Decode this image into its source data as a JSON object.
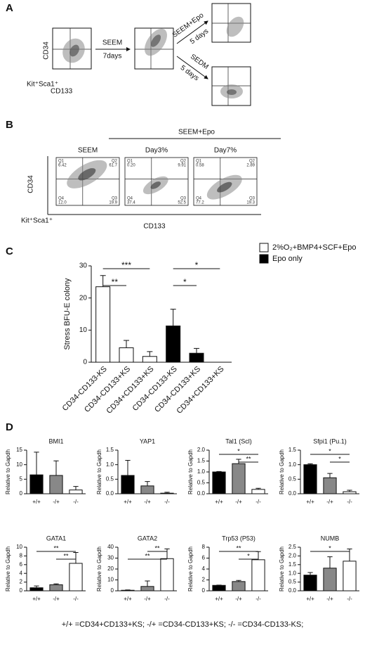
{
  "panels": {
    "A": {
      "label": "A",
      "y_label": "CD34",
      "x_label1": "Kit⁺Sca1⁺",
      "x_label2": "CD133",
      "step1": "SEEM",
      "step1_time": "7days",
      "step2a": "SEEM+Epo",
      "step2a_time": "5 days",
      "step2b": "SEDM",
      "step2b_time": "5 days"
    },
    "B": {
      "label": "B",
      "y_label": "CD34",
      "x_label1": "Kit⁺Sca1⁺",
      "x_label2": "CD133",
      "group": "SEEM+Epo",
      "plots": [
        {
          "title": "SEEM",
          "quadrants": [
            {
              "name": "Q1",
              "value": "6.42"
            },
            {
              "name": "Q2",
              "value": "61.7"
            },
            {
              "name": "Q4",
              "value": "12.0"
            },
            {
              "name": "Q3",
              "value": "19.9"
            }
          ]
        },
        {
          "title": "Day3%",
          "quadrants": [
            {
              "name": "Q1",
              "value": "0.20"
            },
            {
              "name": "Q2",
              "value": "9.91"
            },
            {
              "name": "Q4",
              "value": "37.4"
            },
            {
              "name": "Q3",
              "value": "52.5"
            }
          ]
        },
        {
          "title": "Day7%",
          "quadrants": [
            {
              "name": "Q1",
              "value": "0.58"
            },
            {
              "name": "Q2",
              "value": "2.89"
            },
            {
              "name": "Q4",
              "value": "77.2"
            },
            {
              "name": "Q3",
              "value": "19.3"
            }
          ]
        }
      ]
    },
    "C": {
      "label": "C"
    },
    "D": {
      "label": "D"
    }
  },
  "chart_data": [
    {
      "type": "bar",
      "ylabel": "Stress BFU-E colony",
      "categories": [
        "CD34-CD133-KS",
        "CD34-CD133+KS",
        "CD34+CD133+KS",
        "CD34-CD133-KS",
        "CD34-CD133+KS",
        "CD34+CD133+KS"
      ],
      "series": [
        {
          "name": "2%O₂+BMP4+SCF+Epo",
          "color": "#ffffff",
          "values": [
            23.5,
            4.5,
            1.8,
            null,
            null,
            null
          ],
          "errors": [
            3.5,
            2.3,
            1.5,
            null,
            null,
            null
          ]
        },
        {
          "name": "Epo only",
          "color": "#000000",
          "values": [
            null,
            null,
            null,
            11.3,
            2.8,
            0
          ],
          "errors": [
            null,
            null,
            null,
            5.2,
            1.5,
            0
          ]
        }
      ],
      "ylim": [
        0,
        30
      ],
      "yticks": [
        0,
        10,
        20,
        30
      ],
      "annotations": [
        {
          "text": "***",
          "from": 0,
          "to": 2
        },
        {
          "text": "**",
          "from": 0,
          "to": 1
        },
        {
          "text": "*",
          "from": 3,
          "to": 5
        },
        {
          "text": "*",
          "from": 3,
          "to": 4
        }
      ]
    },
    {
      "type": "bar",
      "title": "BMI1",
      "ylabel": "Relative to Gapdh",
      "categories": [
        "+/+",
        "-/+",
        "-/-"
      ],
      "values": [
        6.5,
        6.3,
        1.3
      ],
      "errors": [
        7.8,
        5,
        1.2
      ],
      "colors": [
        "#000000",
        "#888888",
        "#ffffff"
      ],
      "ylim": [
        0,
        15
      ],
      "yticks": [
        0,
        5,
        10,
        15
      ],
      "annotations": []
    },
    {
      "type": "bar",
      "title": "YAP1",
      "ylabel": "Relative to Gapdh",
      "categories": [
        "+/+",
        "-/+",
        "-/-"
      ],
      "values": [
        0.63,
        0.27,
        0.02
      ],
      "errors": [
        0.52,
        0.15,
        0.03
      ],
      "colors": [
        "#000000",
        "#888888",
        "#ffffff"
      ],
      "ylim": [
        0,
        1.5
      ],
      "yticks": [
        {
          "value": 0,
          "label": "0.0"
        },
        0.5,
        {
          "value": 1,
          "label": "1.0"
        },
        1.5
      ],
      "annotations": []
    },
    {
      "type": "bar",
      "title": "Tal1 (Scl)",
      "ylabel": "Relative to Gapdh",
      "categories": [
        "+/+",
        "-/+",
        "-/-"
      ],
      "values": [
        1.0,
        1.38,
        0.2
      ],
      "errors": [
        0.02,
        0.2,
        0.05
      ],
      "colors": [
        "#000000",
        "#888888",
        "#ffffff"
      ],
      "ylim": [
        0,
        2
      ],
      "yticks": [
        {
          "value": 0,
          "label": "0.0"
        },
        0.5,
        {
          "value": 1,
          "label": "1.0"
        },
        1.5,
        {
          "value": 2,
          "label": "2.0"
        }
      ],
      "annotations": [
        {
          "text": "*",
          "from": 0,
          "to": 2
        },
        {
          "text": "**",
          "from": 1,
          "to": 2
        }
      ]
    },
    {
      "type": "bar",
      "title": "Sfpi1 (Pu.1)",
      "ylabel": "Relative to Gapdh",
      "categories": [
        "+/+",
        "-/+",
        "-/-"
      ],
      "values": [
        1.0,
        0.55,
        0.07
      ],
      "errors": [
        0.03,
        0.15,
        0.05
      ],
      "colors": [
        "#000000",
        "#888888",
        "#ffffff"
      ],
      "ylim": [
        0,
        1.5
      ],
      "yticks": [
        {
          "value": 0,
          "label": "0.0"
        },
        0.5,
        {
          "value": 1,
          "label": "1.0"
        },
        1.5
      ],
      "annotations": [
        {
          "text": "*",
          "from": 0,
          "to": 2
        },
        {
          "text": "*",
          "from": 1,
          "to": 2
        }
      ]
    },
    {
      "type": "bar",
      "title": "GATA1",
      "ylabel": "Relative to Gapdh",
      "categories": [
        "+/+",
        "-/+",
        "-/-"
      ],
      "values": [
        0.7,
        1.4,
        6.3
      ],
      "errors": [
        0.4,
        0.2,
        2.5
      ],
      "colors": [
        "#000000",
        "#888888",
        "#ffffff"
      ],
      "ylim": [
        0,
        10
      ],
      "yticks": [
        0,
        2,
        4,
        6,
        8,
        10
      ],
      "annotations": [
        {
          "text": "**",
          "from": 0,
          "to": 2
        },
        {
          "text": "**",
          "from": 1,
          "to": 2
        }
      ]
    },
    {
      "type": "bar",
      "title": "GATA2",
      "ylabel": "Relative to Gapdh",
      "categories": [
        "+/+",
        "-/+",
        "-/-"
      ],
      "values": [
        0.5,
        4,
        29.5
      ],
      "errors": [
        0.3,
        5,
        9
      ],
      "colors": [
        "#000000",
        "#888888",
        "#ffffff"
      ],
      "ylim": [
        0,
        40
      ],
      "yticks": [
        0,
        10,
        20,
        30,
        40
      ],
      "annotations": [
        {
          "text": "**",
          "from": 1,
          "to": 2
        },
        {
          "text": "**",
          "from": 0,
          "to": 2
        }
      ]
    },
    {
      "type": "bar",
      "title": "Trp53 (P53)",
      "ylabel": "Relative to Gapdh",
      "categories": [
        "+/+",
        "-/+",
        "-/-"
      ],
      "values": [
        1.0,
        1.7,
        5.7
      ],
      "errors": [
        0.05,
        0.2,
        1.5
      ],
      "colors": [
        "#000000",
        "#888888",
        "#ffffff"
      ],
      "ylim": [
        0,
        8
      ],
      "yticks": [
        0,
        2,
        4,
        6,
        8
      ],
      "annotations": [
        {
          "text": "**",
          "from": 0,
          "to": 2
        },
        {
          "text": "*",
          "from": 1,
          "to": 2
        }
      ]
    },
    {
      "type": "bar",
      "title": "NUMB",
      "ylabel": "Relative to Gapdh",
      "categories": [
        "+/+",
        "-/+",
        "-/-"
      ],
      "values": [
        0.9,
        1.3,
        1.7
      ],
      "errors": [
        0.15,
        0.65,
        0.7
      ],
      "colors": [
        "#000000",
        "#888888",
        "#ffffff"
      ],
      "ylim": [
        0,
        2.5
      ],
      "yticks": [
        {
          "value": 0,
          "label": "0.0"
        },
        0.5,
        {
          "value": 1,
          "label": "1.0"
        },
        1.5,
        {
          "value": 2,
          "label": "2.0"
        },
        2.5
      ],
      "annotations": [
        {
          "text": "*",
          "from": 0,
          "to": 2
        }
      ]
    }
  ],
  "footnote": "+/+ =CD34+CD133+KS;  -/+ =CD34-CD133+KS;  -/-  =CD34-CD133-KS;"
}
